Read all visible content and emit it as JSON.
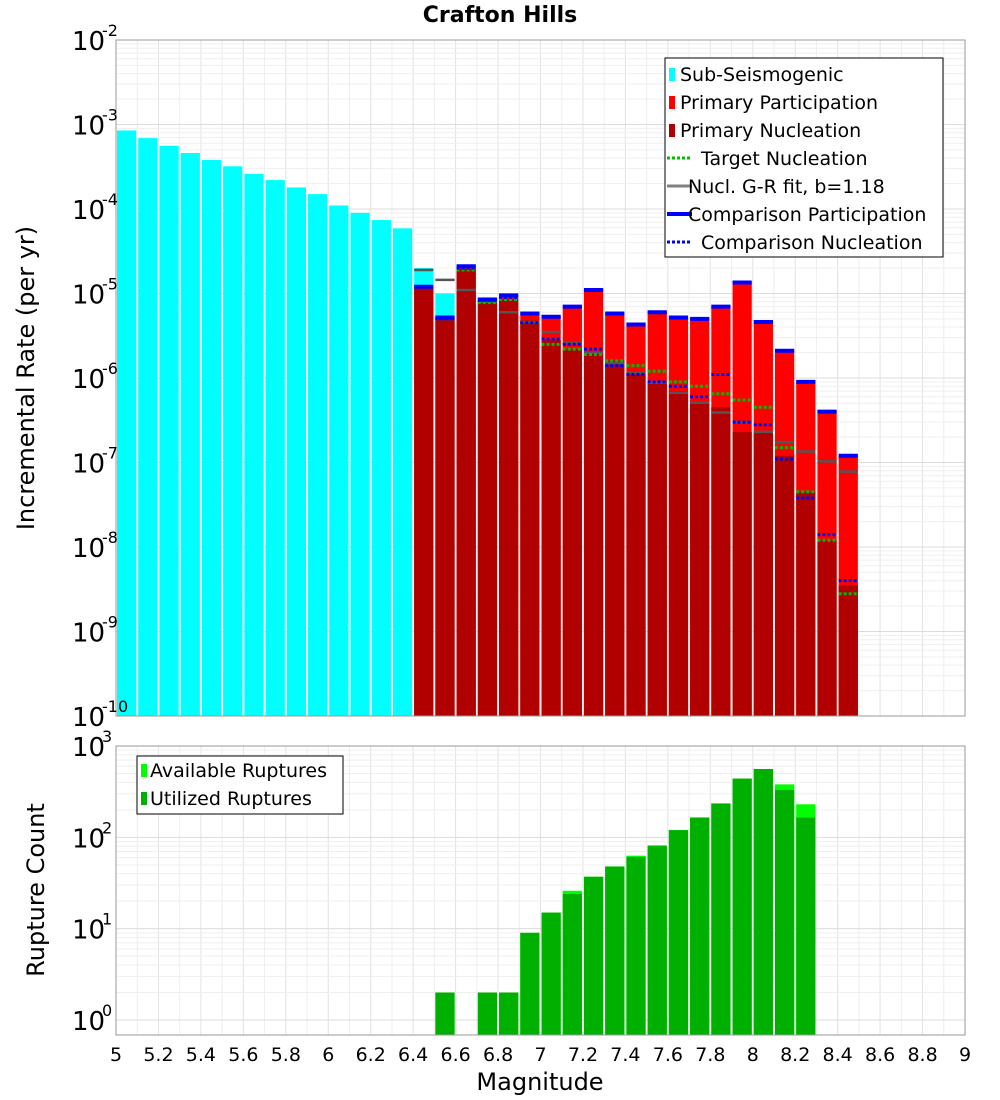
{
  "chart_data": [
    {
      "type": "bar",
      "title": "Crafton Hills",
      "xlabel": "",
      "ylabel": "Incremental Rate (per yr)",
      "yscale": "log",
      "xlim": [
        5,
        9
      ],
      "ylim": [
        1e-10,
        0.01
      ],
      "ytick_exponents": [
        "-10",
        "-9",
        "-8",
        "-7",
        "-6",
        "-5",
        "-4",
        "-3",
        "-2"
      ],
      "bin_width": 0.1,
      "legend_position": "top-right",
      "legend": [
        {
          "label": "Sub-Seismogenic",
          "color": "#00ffff",
          "style": "bar"
        },
        {
          "label": "Primary Participation",
          "color": "#ff0000",
          "style": "bar"
        },
        {
          "label": "Primary Nucleation",
          "color": "#b00000",
          "style": "bar"
        },
        {
          "label": "Target Nucleation",
          "color": "#00bb00",
          "style": "dotted"
        },
        {
          "label": "Nucl. G-R fit, b=1.18",
          "color": "#808080",
          "style": "solid"
        },
        {
          "label": "Comparison Participation",
          "color": "#0000ff",
          "style": "thick"
        },
        {
          "label": "Comparison Nucleation",
          "color": "#0000ff",
          "style": "dotted"
        }
      ],
      "series": [
        {
          "name": "Sub-Seismogenic",
          "x": [
            5.05,
            5.15,
            5.25,
            5.35,
            5.45,
            5.55,
            5.65,
            5.75,
            5.85,
            5.95,
            6.05,
            6.15,
            6.25,
            6.35,
            6.45,
            6.55
          ],
          "values": [
            0.00085,
            0.00069,
            0.00056,
            0.00046,
            0.00038,
            0.00032,
            0.00026,
            0.00022,
            0.00018,
            0.00015,
            0.00011,
            9e-05,
            7.4e-05,
            5.9e-05,
            2e-05,
            1e-05
          ]
        },
        {
          "name": "Primary Participation",
          "x": [
            6.45,
            6.55,
            6.65,
            6.75,
            6.85,
            6.95,
            7.05,
            7.15,
            7.25,
            7.35,
            7.45,
            7.55,
            7.65,
            7.75,
            7.85,
            7.95,
            8.05,
            8.15,
            8.25,
            8.35,
            8.45
          ],
          "values": [
            1.2e-05,
            5.2e-06,
            2.1e-05,
            8.5e-06,
            9.5e-06,
            5.8e-06,
            5.3e-06,
            7e-06,
            1.1e-05,
            5.8e-06,
            4.3e-06,
            6e-06,
            5.2e-06,
            5e-06,
            7e-06,
            1.35e-05,
            4.6e-06,
            2.1e-06,
            9e-07,
            4e-07,
            1.2e-07
          ]
        },
        {
          "name": "Primary Nucleation",
          "x": [
            6.45,
            6.55,
            6.65,
            6.75,
            6.85,
            6.95,
            7.05,
            7.15,
            7.25,
            7.35,
            7.45,
            7.55,
            7.65,
            7.75,
            7.85,
            7.95,
            8.05,
            8.15,
            8.25,
            8.35,
            8.45
          ],
          "values": [
            1.15e-05,
            5e-06,
            1.95e-05,
            7.8e-06,
            8.5e-06,
            4.8e-06,
            2.8e-06,
            2.2e-06,
            2e-06,
            1.6e-06,
            1.1e-06,
            9e-07,
            7e-07,
            5e-07,
            4.5e-07,
            2.3e-07,
            2.3e-07,
            1.2e-07,
            4.5e-08,
            1.2e-08,
            3.5e-09
          ]
        },
        {
          "name": "Target Nucleation",
          "x": [
            6.55,
            6.65,
            6.75,
            6.85,
            6.95,
            7.05,
            7.15,
            7.25,
            7.35,
            7.45,
            7.55,
            7.65,
            7.75,
            7.85,
            7.95,
            8.05,
            8.15,
            8.25,
            8.35,
            8.45
          ],
          "values": [
            5e-06,
            1.9e-05,
            7.8e-06,
            8.5e-06,
            4.5e-06,
            2.5e-06,
            2.2e-06,
            1.9e-06,
            1.6e-06,
            1.4e-06,
            1.2e-06,
            9e-07,
            8e-07,
            6.5e-07,
            5.5e-07,
            4.5e-07,
            1.5e-07,
            4.5e-08,
            1.2e-08,
            2.8e-09
          ]
        },
        {
          "name": "Nucl. G-R fit, b=1.18",
          "x": [
            6.45,
            6.55,
            6.65,
            6.75,
            6.85,
            6.95,
            7.05,
            7.15,
            7.25,
            7.35,
            7.45,
            7.55,
            7.65,
            7.75,
            7.85,
            7.95,
            8.05,
            8.15,
            8.25,
            8.35,
            8.45
          ],
          "values": [
            1.9e-05,
            1.45e-05,
            1.1e-05,
            8e-06,
            6e-06,
            4.6e-06,
            3.5e-06,
            2.6e-06,
            2e-06,
            1.5e-06,
            1.15e-06,
            8.8e-07,
            6.7e-07,
            5.1e-07,
            3.9e-07,
            3e-07,
            2.3e-07,
            1.75e-07,
            1.35e-07,
            1.03e-07,
            7.8e-08
          ]
        },
        {
          "name": "Comparison Participation",
          "x": [
            6.45,
            6.55,
            6.65,
            6.75,
            6.85,
            6.95,
            7.05,
            7.15,
            7.25,
            7.35,
            7.45,
            7.55,
            7.65,
            7.75,
            7.85,
            7.95,
            8.05,
            8.15,
            8.25,
            8.35,
            8.45
          ],
          "values": [
            1.2e-05,
            5.2e-06,
            2.1e-05,
            8.5e-06,
            9.5e-06,
            5.8e-06,
            5.3e-06,
            7e-06,
            1.1e-05,
            5.8e-06,
            4.3e-06,
            6e-06,
            5.2e-06,
            5e-06,
            7e-06,
            1.35e-05,
            4.6e-06,
            2.1e-06,
            9e-07,
            4e-07,
            1.2e-07
          ]
        },
        {
          "name": "Comparison Nucleation",
          "x": [
            6.55,
            6.65,
            6.75,
            6.85,
            6.95,
            7.05,
            7.15,
            7.25,
            7.35,
            7.45,
            7.55,
            7.65,
            7.75,
            7.85,
            7.95,
            8.05,
            8.15,
            8.25,
            8.35,
            8.45
          ],
          "values": [
            5e-06,
            2e-05,
            8.3e-06,
            9e-06,
            4.5e-06,
            2.9e-06,
            2.5e-06,
            2.2e-06,
            1.4e-06,
            1.1e-06,
            9e-07,
            8e-07,
            6e-07,
            1.1e-06,
            3e-07,
            2.8e-07,
            1.1e-07,
            3.8e-08,
            1.4e-08,
            4e-09
          ]
        }
      ]
    },
    {
      "type": "bar",
      "title": "",
      "xlabel": "Magnitude",
      "ylabel": "Rupture Count",
      "yscale": "log",
      "xlim": [
        5,
        9
      ],
      "ylim": [
        0.8,
        1000
      ],
      "ytick_exponents": [
        "0",
        "1",
        "2",
        "3"
      ],
      "xticks": [
        "5",
        "5.2",
        "5.4",
        "5.6",
        "5.8",
        "6",
        "6.2",
        "6.4",
        "6.6",
        "6.8",
        "7",
        "7.2",
        "7.4",
        "7.6",
        "7.8",
        "8",
        "8.2",
        "8.4",
        "8.6",
        "8.8",
        "9"
      ],
      "bin_width": 0.1,
      "legend_position": "top-left",
      "legend": [
        {
          "label": "Available Ruptures",
          "color": "#00ff00",
          "style": "bar"
        },
        {
          "label": "Utilized Ruptures",
          "color": "#00b000",
          "style": "bar"
        }
      ],
      "series": [
        {
          "name": "Available Ruptures",
          "x": [
            6.55,
            6.75,
            6.85,
            6.95,
            7.05,
            7.15,
            7.25,
            7.35,
            7.45,
            7.55,
            7.65,
            7.75,
            7.85,
            7.95,
            8.05,
            8.15,
            8.25
          ],
          "values": [
            2,
            2,
            2,
            9,
            15,
            26,
            37,
            48,
            63,
            82,
            120,
            165,
            235,
            440,
            560,
            380,
            230
          ]
        },
        {
          "name": "Utilized Ruptures",
          "x": [
            6.55,
            6.75,
            6.85,
            6.95,
            7.05,
            7.15,
            7.25,
            7.35,
            7.45,
            7.55,
            7.65,
            7.75,
            7.85,
            7.95,
            8.05,
            8.15,
            8.25
          ],
          "values": [
            2,
            2,
            2,
            9,
            15,
            24,
            37,
            48,
            61,
            80,
            120,
            165,
            235,
            440,
            560,
            330,
            165
          ]
        }
      ]
    }
  ]
}
